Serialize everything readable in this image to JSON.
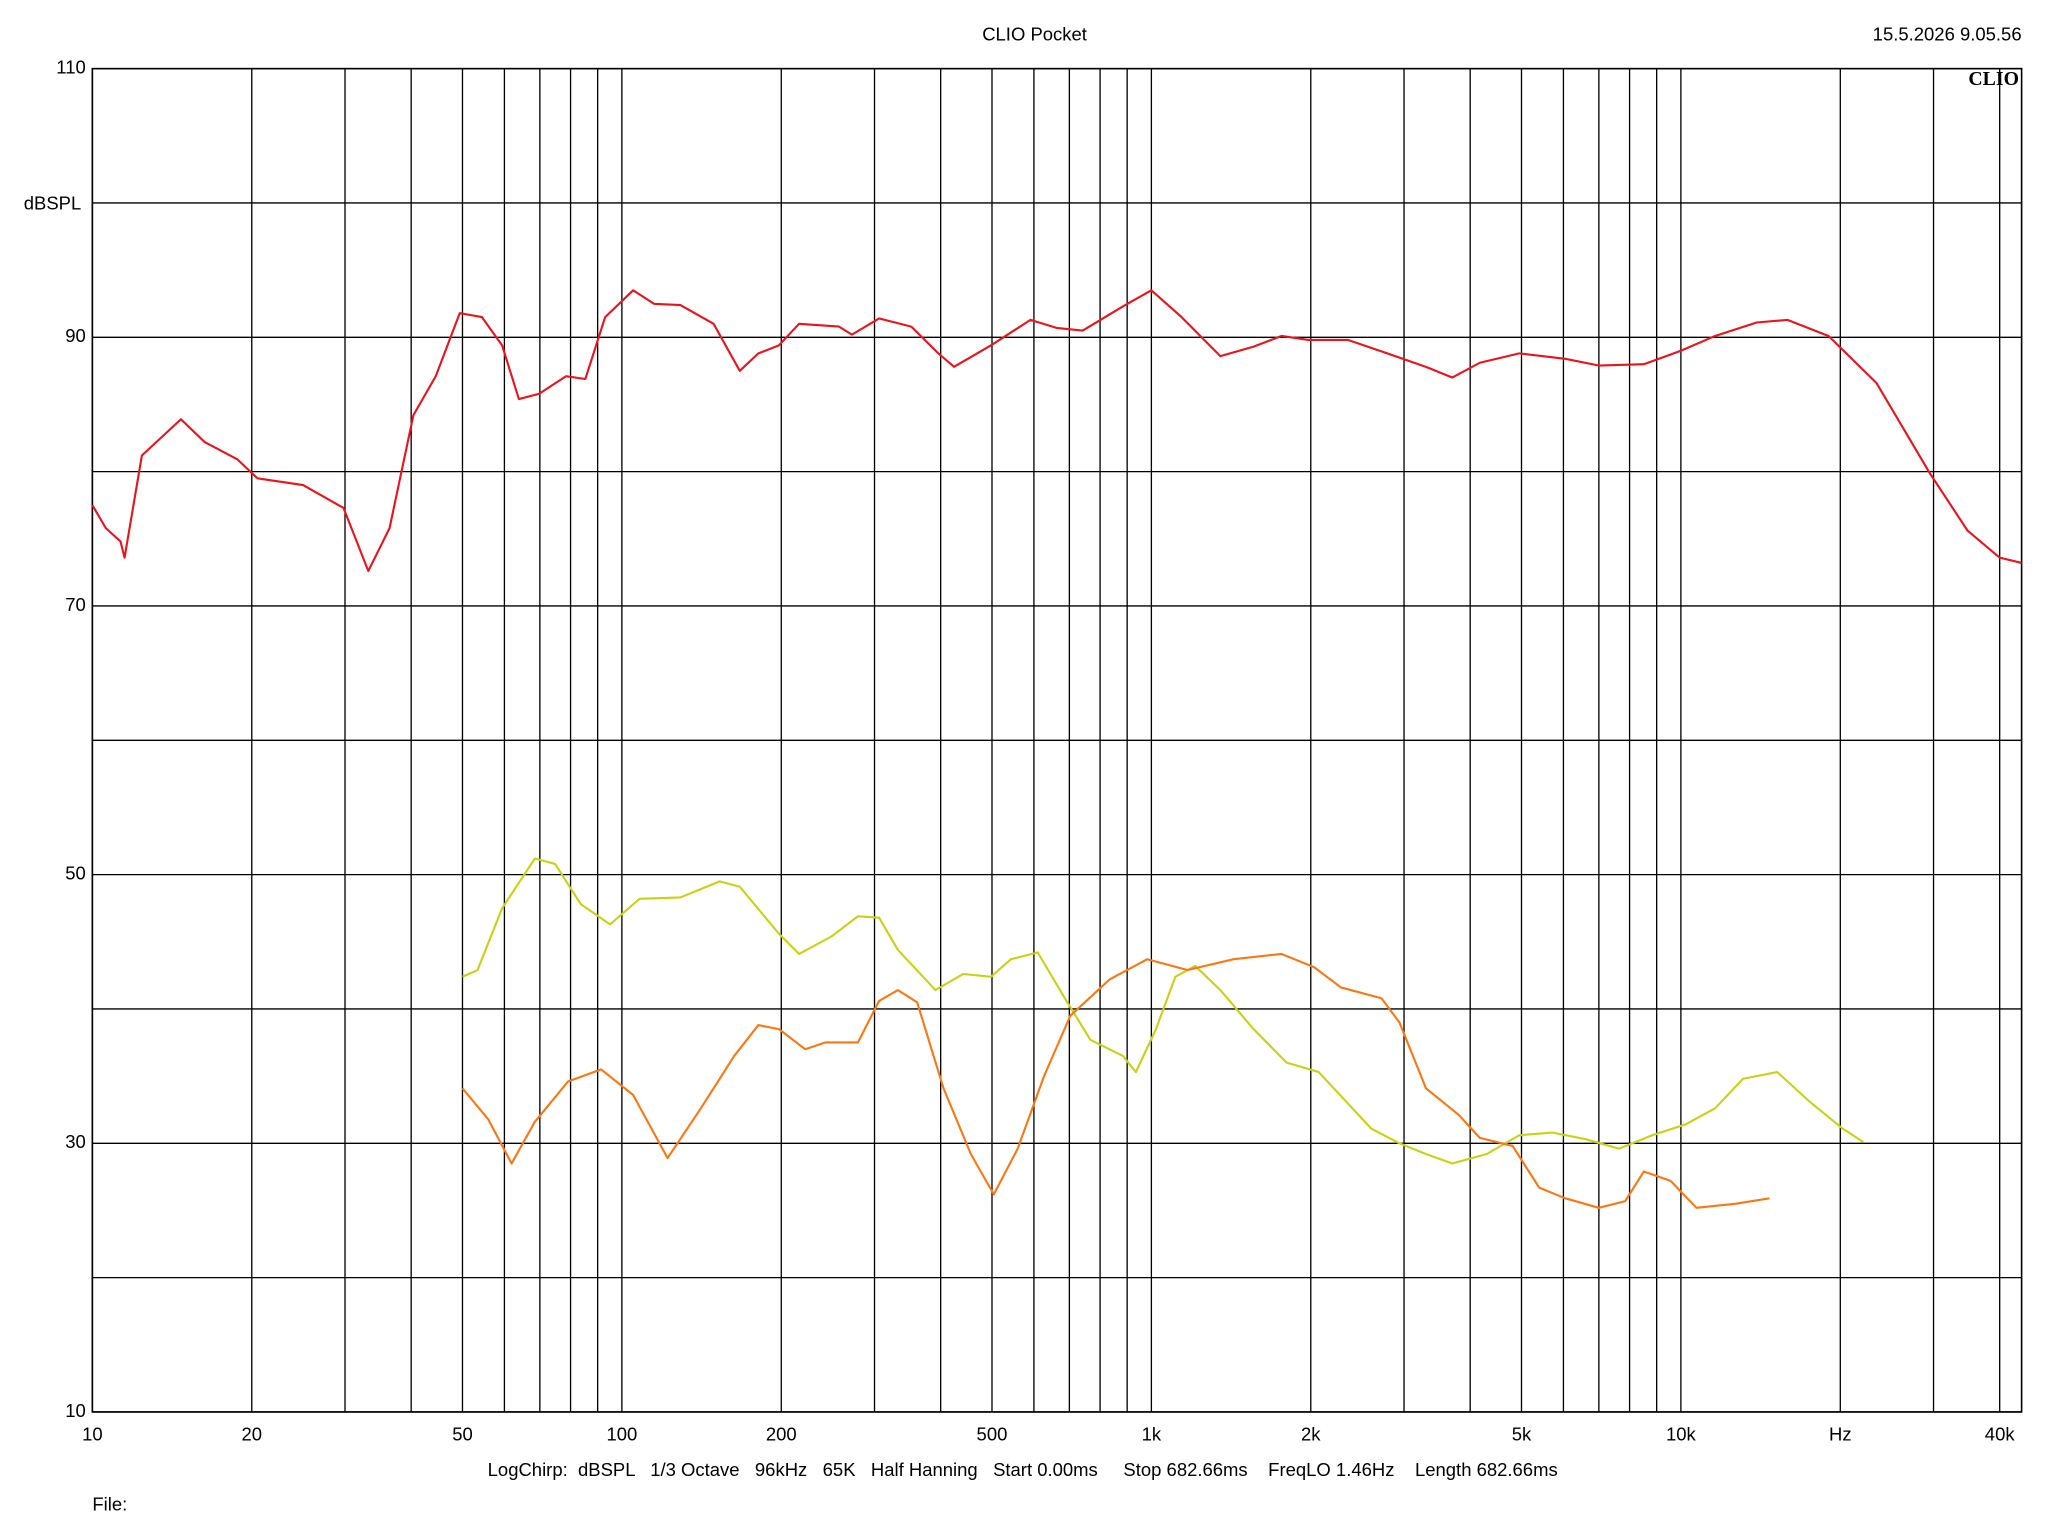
{
  "chart_data": {
    "type": "line",
    "title": "CLIO Pocket",
    "timestamp": "15.5.2026 9.05.56",
    "logo": "CLIO",
    "ylabel": "dBSPL",
    "footer": "LogChirp:  dBSPL   1/3 Octave   96kHz   65K   Half Hanning   Start 0.00ms     Stop 682.66ms    FreqLO 1.46Hz    Length 682.66ms",
    "file_label": "File:",
    "xscale": "log",
    "grid": true,
    "xlim": [
      10,
      44000
    ],
    "ylim": [
      10,
      110
    ],
    "xticks": [
      10,
      20,
      50,
      100,
      200,
      500,
      {
        "value": 1000,
        "label": "1k"
      },
      {
        "value": 2000,
        "label": "2k"
      },
      {
        "value": 5000,
        "label": "5k"
      },
      {
        "value": 10000,
        "label": "10k"
      },
      {
        "value": 20000,
        "label": "Hz"
      },
      {
        "value": 40000,
        "label": "40k"
      }
    ],
    "xgrid": [
      30,
      40,
      60,
      70,
      80,
      90,
      300,
      400,
      600,
      700,
      800,
      900,
      3000,
      4000,
      6000,
      7000,
      8000,
      9000,
      30000
    ],
    "yticks": [
      10,
      30,
      50,
      70,
      90,
      110
    ],
    "ygrid": [
      20,
      40,
      60,
      80,
      100
    ],
    "series": [
      {
        "color": "#e8141e",
        "x": [
          10,
          10.6,
          11.3,
          11.5,
          12.4,
          14.7,
          16.3,
          18.8,
          20.5,
          25,
          29.8,
          33.2,
          36.4,
          40.4,
          44.5,
          49.4,
          54.4,
          59.4,
          63.9,
          69.8,
          78.4,
          85.3,
          93,
          105,
          115,
          129,
          149,
          167,
          181,
          198,
          216,
          257,
          272,
          306,
          352,
          396,
          424,
          498,
          591,
          662,
          742,
          883,
          1000,
          1140,
          1350,
          1560,
          1760,
          1980,
          2350,
          2790,
          3300,
          3700,
          4170,
          4950,
          6050,
          7000,
          8510,
          10000,
          11600,
          13900,
          15900,
          19000,
          23400,
          29500,
          34800,
          40000,
          44000
        ],
        "values": [
          77.5,
          75.8,
          74.8,
          73.6,
          81.2,
          83.9,
          82.2,
          80.9,
          79.5,
          79,
          77.3,
          72.6,
          75.8,
          84.2,
          87.1,
          91.8,
          91.5,
          89.4,
          85.4,
          85.8,
          87.1,
          86.9,
          91.5,
          93.5,
          92.5,
          92.4,
          91,
          87.5,
          88.8,
          89.4,
          91,
          90.8,
          90.2,
          91.4,
          90.8,
          88.8,
          87.8,
          89.4,
          91.3,
          90.7,
          90.5,
          92.3,
          93.5,
          91.5,
          88.6,
          89.3,
          90.1,
          89.8,
          89.8,
          88.8,
          87.8,
          87,
          88.1,
          88.8,
          88.4,
          87.9,
          88,
          89,
          90.1,
          91.1,
          91.3,
          90.1,
          86.6,
          79.9,
          75.6,
          73.6,
          73.2
        ]
      },
      {
        "color": "#c8d214",
        "x": [
          50,
          53.4,
          59.4,
          68.5,
          74.8,
          83.6,
          95,
          108,
          129,
          153,
          167,
          198,
          216,
          249,
          279,
          306,
          332,
          391,
          441,
          498,
          543,
          610,
          684,
          767,
          883,
          935,
          1020,
          1110,
          1210,
          1350,
          1560,
          1800,
          2070,
          2600,
          2940,
          3300,
          3700,
          4300,
          4950,
          5720,
          6610,
          7640,
          8830,
          10200,
          11600,
          13100,
          15200,
          17500,
          20200,
          22100
        ],
        "values": [
          42.4,
          42.9,
          47.5,
          51.2,
          50.8,
          47.8,
          46.3,
          48.2,
          48.3,
          49.5,
          49.1,
          45.6,
          44.1,
          45.4,
          46.9,
          46.8,
          44.4,
          41.4,
          42.6,
          42.4,
          43.7,
          44.2,
          40.9,
          37.7,
          36.5,
          35.3,
          38.5,
          42.4,
          43.2,
          41.4,
          38.5,
          36,
          35.3,
          31.1,
          30,
          29.2,
          28.5,
          29.2,
          30.6,
          30.8,
          30.3,
          29.6,
          30.6,
          31.4,
          32.6,
          34.8,
          35.3,
          33.1,
          31.1,
          30.1
        ]
      },
      {
        "color": "#fa7814",
        "x": [
          50,
          55.9,
          61.9,
          68.5,
          79.1,
          91.4,
          105,
          122,
          141,
          163,
          181,
          198,
          222,
          242,
          279,
          306,
          332,
          361,
          405,
          456,
          504,
          559,
          627,
          703,
          834,
          982,
          1170,
          1430,
          1760,
          2030,
          2280,
          2720,
          2940,
          3300,
          3810,
          4170,
          4810,
          5400,
          6050,
          7000,
          7850,
          8510,
          9560,
          10700,
          12700,
          14700
        ],
        "values": [
          34.1,
          31.8,
          28.5,
          31.6,
          34.6,
          35.5,
          33.6,
          28.9,
          32.6,
          36.5,
          38.8,
          38.5,
          37,
          37.5,
          37.5,
          40.6,
          41.4,
          40.5,
          34.1,
          29.2,
          26.2,
          29.6,
          35,
          39.5,
          42.2,
          43.7,
          42.9,
          43.7,
          44.1,
          43.1,
          41.6,
          40.8,
          39,
          34.1,
          32.1,
          30.4,
          29.8,
          26.7,
          25.9,
          25.2,
          25.7,
          27.9,
          27.2,
          25.2,
          25.5,
          25.9
        ]
      }
    ]
  }
}
